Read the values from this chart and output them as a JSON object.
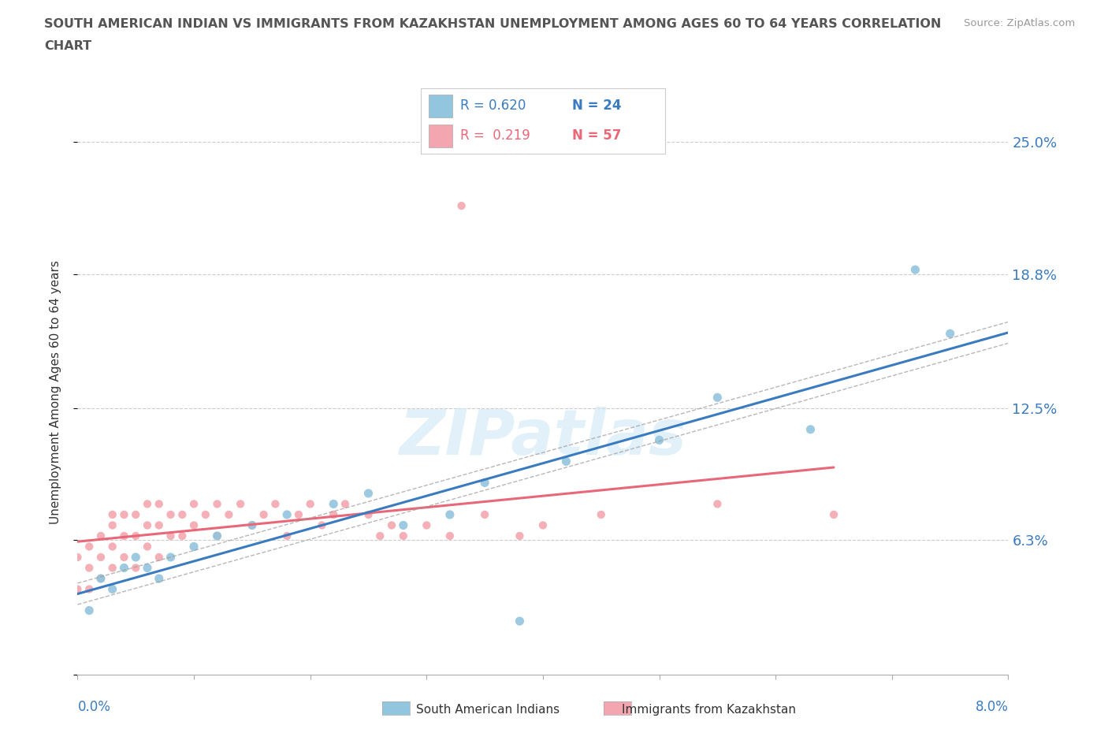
{
  "title_line1": "SOUTH AMERICAN INDIAN VS IMMIGRANTS FROM KAZAKHSTAN UNEMPLOYMENT AMONG AGES 60 TO 64 YEARS CORRELATION",
  "title_line2": "CHART",
  "source": "Source: ZipAtlas.com",
  "ylabel": "Unemployment Among Ages 60 to 64 years",
  "ytick_vals": [
    0.0,
    0.063,
    0.125,
    0.188,
    0.25
  ],
  "ytick_labels": [
    "",
    "6.3%",
    "12.5%",
    "18.8%",
    "25.0%"
  ],
  "xmin": 0.0,
  "xmax": 0.08,
  "ymin": 0.0,
  "ymax": 0.265,
  "legend_blue_r": "R = 0.620",
  "legend_blue_n": "N = 24",
  "legend_pink_r": "R =  0.219",
  "legend_pink_n": "N = 57",
  "label_blue": "South American Indians",
  "label_pink": "Immigrants from Kazakhstan",
  "blue_scatter_color": "#92c5de",
  "pink_scatter_color": "#f4a6b0",
  "blue_line_color": "#3a7bbf",
  "pink_line_color": "#e8687a",
  "legend_r_color": "#3a7bbf",
  "legend_n_color": "#3a7bbf",
  "legend_pink_r_color": "#e8687a",
  "legend_pink_n_color": "#e8687a",
  "watermark": "ZIPatlas",
  "grid_color": "#cccccc",
  "ytick_color": "#3a7bbf",
  "xtick_label_color": "#3a7bbf",
  "blue_points_x": [
    0.001,
    0.002,
    0.003,
    0.004,
    0.005,
    0.006,
    0.007,
    0.008,
    0.01,
    0.012,
    0.015,
    0.018,
    0.022,
    0.025,
    0.028,
    0.032,
    0.035,
    0.038,
    0.042,
    0.05,
    0.055,
    0.063,
    0.072,
    0.075
  ],
  "blue_points_y": [
    0.03,
    0.045,
    0.04,
    0.05,
    0.055,
    0.05,
    0.045,
    0.055,
    0.06,
    0.065,
    0.07,
    0.075,
    0.08,
    0.085,
    0.07,
    0.075,
    0.09,
    0.025,
    0.1,
    0.11,
    0.13,
    0.115,
    0.19,
    0.16
  ],
  "pink_points_x": [
    0.0,
    0.0,
    0.001,
    0.001,
    0.001,
    0.002,
    0.002,
    0.002,
    0.003,
    0.003,
    0.003,
    0.003,
    0.004,
    0.004,
    0.004,
    0.005,
    0.005,
    0.005,
    0.006,
    0.006,
    0.006,
    0.007,
    0.007,
    0.007,
    0.008,
    0.008,
    0.009,
    0.009,
    0.01,
    0.01,
    0.011,
    0.012,
    0.012,
    0.013,
    0.014,
    0.015,
    0.016,
    0.017,
    0.018,
    0.019,
    0.02,
    0.021,
    0.022,
    0.023,
    0.025,
    0.026,
    0.027,
    0.028,
    0.03,
    0.032,
    0.033,
    0.035,
    0.038,
    0.04,
    0.045,
    0.055,
    0.065
  ],
  "pink_points_y": [
    0.04,
    0.055,
    0.04,
    0.05,
    0.06,
    0.045,
    0.055,
    0.065,
    0.05,
    0.06,
    0.07,
    0.075,
    0.055,
    0.065,
    0.075,
    0.05,
    0.065,
    0.075,
    0.06,
    0.07,
    0.08,
    0.055,
    0.07,
    0.08,
    0.065,
    0.075,
    0.065,
    0.075,
    0.07,
    0.08,
    0.075,
    0.065,
    0.08,
    0.075,
    0.08,
    0.07,
    0.075,
    0.08,
    0.065,
    0.075,
    0.08,
    0.07,
    0.075,
    0.08,
    0.075,
    0.065,
    0.07,
    0.065,
    0.07,
    0.065,
    0.22,
    0.075,
    0.065,
    0.07,
    0.075,
    0.08,
    0.075
  ]
}
